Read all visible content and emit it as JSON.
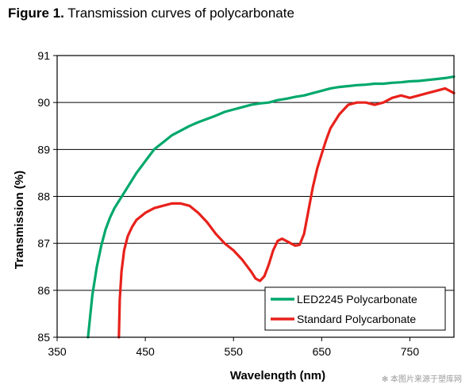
{
  "figure": {
    "label": "Figure 1.",
    "title": "Transmission curves of polycarbonate"
  },
  "watermark": "✻ 本图片来源于塑库网",
  "chart_data": {
    "type": "line",
    "title": "",
    "xlabel": "Wavelength (nm)",
    "ylabel": "Transmission (%)",
    "xlim": [
      350,
      800
    ],
    "ylim": [
      85,
      91
    ],
    "xticks": [
      350,
      450,
      550,
      650,
      750
    ],
    "yticks": [
      85,
      86,
      87,
      88,
      89,
      90,
      91
    ],
    "grid": "horizontal",
    "legend_position": "bottom-right",
    "series": [
      {
        "name": "LED2245 Polycarbonate",
        "color": "#00a86b",
        "x": [
          385,
          390,
          395,
          400,
          405,
          410,
          415,
          420,
          430,
          440,
          450,
          460,
          470,
          480,
          490,
          500,
          510,
          520,
          530,
          540,
          550,
          560,
          570,
          580,
          590,
          600,
          610,
          620,
          630,
          640,
          650,
          660,
          670,
          680,
          690,
          700,
          710,
          720,
          730,
          740,
          750,
          760,
          770,
          780,
          790,
          800
        ],
        "y": [
          85.0,
          85.9,
          86.5,
          86.95,
          87.3,
          87.55,
          87.75,
          87.9,
          88.2,
          88.5,
          88.75,
          89.0,
          89.15,
          89.3,
          89.4,
          89.5,
          89.58,
          89.65,
          89.72,
          89.8,
          89.85,
          89.9,
          89.95,
          89.98,
          90.0,
          90.05,
          90.08,
          90.12,
          90.15,
          90.2,
          90.25,
          90.3,
          90.33,
          90.35,
          90.37,
          90.38,
          90.4,
          90.4,
          90.42,
          90.43,
          90.45,
          90.46,
          90.48,
          90.5,
          90.52,
          90.55
        ]
      },
      {
        "name": "Standard Polycarbonate",
        "color": "#e8211b",
        "x": [
          420,
          421,
          423,
          426,
          430,
          435,
          440,
          450,
          460,
          470,
          480,
          490,
          500,
          510,
          520,
          530,
          540,
          550,
          560,
          570,
          575,
          580,
          585,
          590,
          595,
          600,
          605,
          610,
          615,
          620,
          625,
          630,
          635,
          640,
          645,
          650,
          655,
          660,
          670,
          680,
          690,
          700,
          710,
          720,
          730,
          740,
          750,
          760,
          770,
          780,
          790,
          800
        ],
        "y": [
          85.0,
          85.8,
          86.4,
          86.85,
          87.15,
          87.35,
          87.5,
          87.65,
          87.75,
          87.8,
          87.85,
          87.85,
          87.8,
          87.65,
          87.45,
          87.2,
          87.0,
          86.85,
          86.65,
          86.4,
          86.25,
          86.2,
          86.3,
          86.55,
          86.85,
          87.05,
          87.1,
          87.05,
          87.0,
          86.95,
          86.97,
          87.2,
          87.7,
          88.2,
          88.6,
          88.9,
          89.2,
          89.45,
          89.75,
          89.95,
          90.0,
          90.0,
          89.95,
          90.0,
          90.1,
          90.15,
          90.1,
          90.15,
          90.2,
          90.25,
          90.3,
          90.2
        ]
      }
    ]
  }
}
